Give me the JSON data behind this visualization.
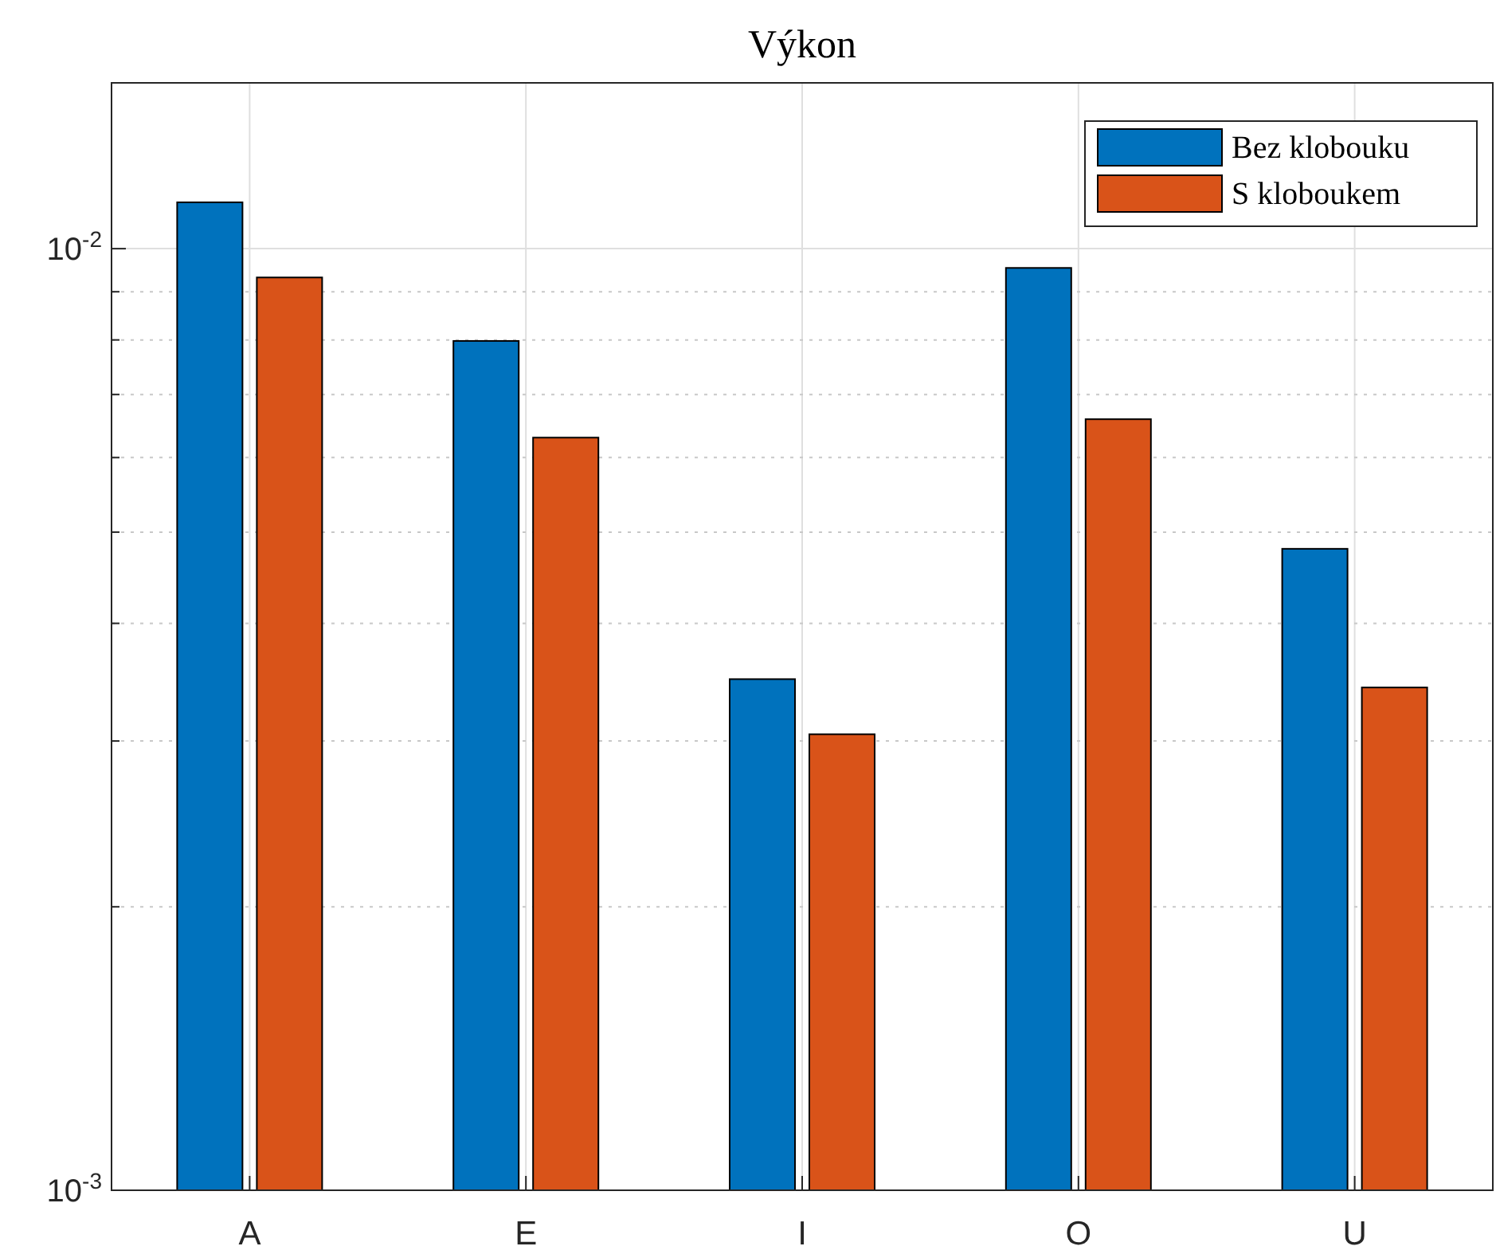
{
  "chart_data": {
    "type": "bar",
    "title": "Výkon",
    "categories": [
      "A",
      "E",
      "I",
      "O",
      "U"
    ],
    "series": [
      {
        "name": "Bez klobouku",
        "color": "#0072bd",
        "values": [
          0.0112,
          0.00798,
          0.00349,
          0.00954,
          0.0048
        ]
      },
      {
        "name": "S kloboukem",
        "color": "#d95319",
        "values": [
          0.00932,
          0.0063,
          0.00305,
          0.00659,
          0.00342
        ]
      }
    ],
    "log": true,
    "ylim": [
      0.001,
      0.015
    ],
    "yticks": [
      {
        "value": 0.001,
        "label": "10$^{-3}$"
      },
      {
        "value": 0.002,
        "label": null
      },
      {
        "value": 0.003,
        "label": null
      },
      {
        "value": 0.004,
        "label": null
      },
      {
        "value": 0.005,
        "label": null
      },
      {
        "value": 0.006,
        "label": null
      },
      {
        "value": 0.007,
        "label": null
      },
      {
        "value": 0.008,
        "label": null
      },
      {
        "value": 0.009,
        "label": null
      },
      {
        "value": 0.01,
        "label": "10$^{-2}$"
      }
    ],
    "grid": true,
    "legend": "top right"
  }
}
